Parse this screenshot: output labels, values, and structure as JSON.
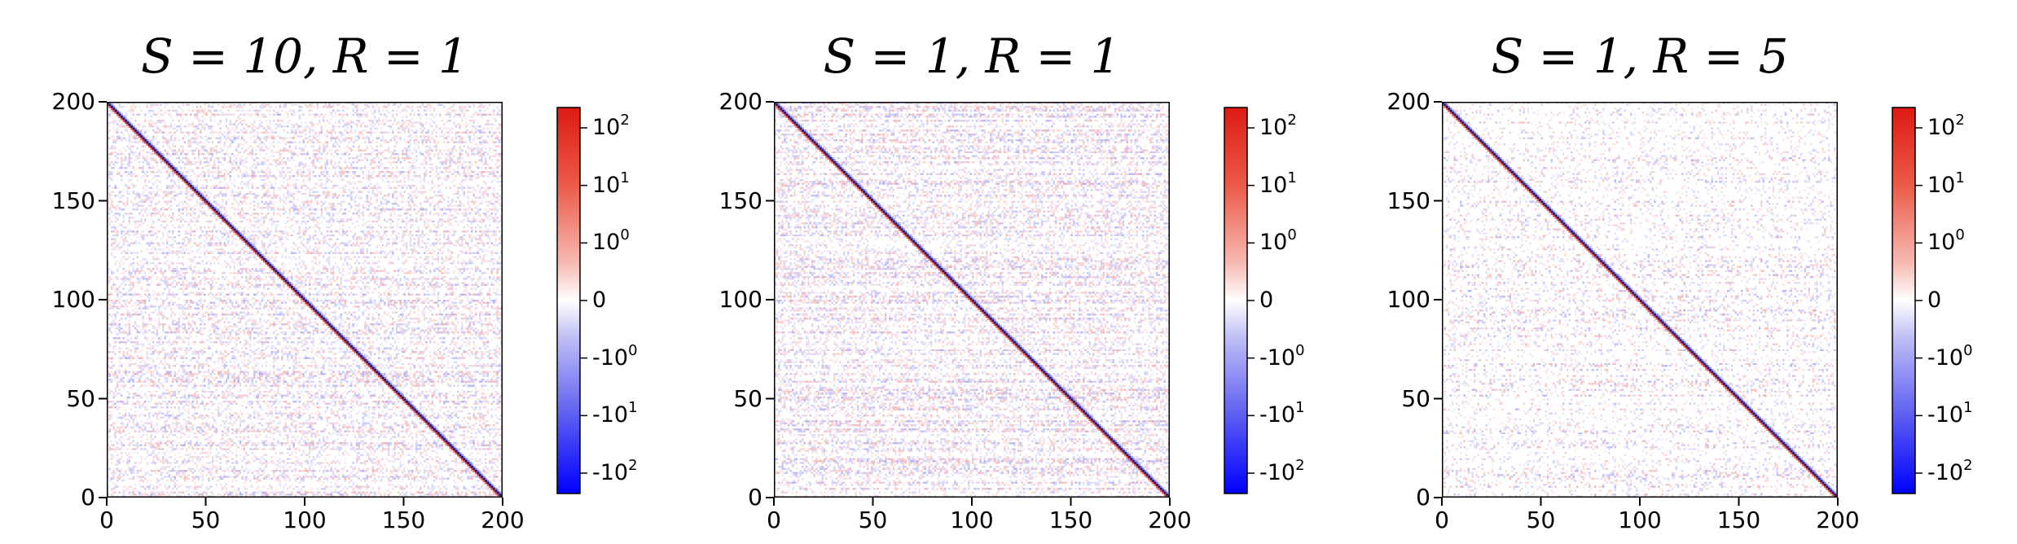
{
  "chart_data": [
    {
      "type": "heatmap",
      "title": "S = 10, R = 1",
      "x_ticks": [
        "0",
        "50",
        "100",
        "150",
        "200"
      ],
      "y_ticks": [
        "0",
        "50",
        "100",
        "150",
        "200"
      ],
      "xlim": [
        0,
        200
      ],
      "ylim": [
        0,
        200
      ],
      "matrix_size": 200,
      "colorscale": "bwr (symmetric log)",
      "colorbar_ticks": [
        "10^2",
        "10^1",
        "10^0",
        "0",
        "-10^0",
        "-10^1",
        "-10^2"
      ],
      "diagonal": "strong negative values on the diagonal, strong positive values just below it",
      "off_diagonal_density": 0.55
    },
    {
      "type": "heatmap",
      "title": "S = 1, R = 1",
      "x_ticks": [
        "0",
        "50",
        "100",
        "150",
        "200"
      ],
      "y_ticks": [
        "0",
        "50",
        "100",
        "150",
        "200"
      ],
      "xlim": [
        0,
        200
      ],
      "ylim": [
        0,
        200
      ],
      "matrix_size": 200,
      "colorscale": "bwr (symmetric log)",
      "colorbar_ticks": [
        "10^2",
        "10^1",
        "10^0",
        "0",
        "-10^0",
        "-10^1",
        "-10^2"
      ],
      "diagonal": "strong negative values on the diagonal",
      "off_diagonal_density": 0.6
    },
    {
      "type": "heatmap",
      "title": "S = 1, R = 5",
      "x_ticks": [
        "0",
        "50",
        "100",
        "150",
        "200"
      ],
      "y_ticks": [
        "0",
        "50",
        "100",
        "150",
        "200"
      ],
      "xlim": [
        0,
        200
      ],
      "ylim": [
        0,
        200
      ],
      "matrix_size": 200,
      "colorscale": "bwr (symmetric log)",
      "colorbar_ticks": [
        "10^2",
        "10^1",
        "10^0",
        "0",
        "-10^0",
        "-10^1",
        "-10^2"
      ],
      "diagonal": "strong negative diagonal band with positive neighbours",
      "off_diagonal_density": 0.35
    }
  ],
  "colors": {
    "positive": "#e8281e",
    "zero": "#ffffff",
    "negative": "#0000ff",
    "diagonal": "#1a1a6e",
    "axis": "#000000"
  }
}
